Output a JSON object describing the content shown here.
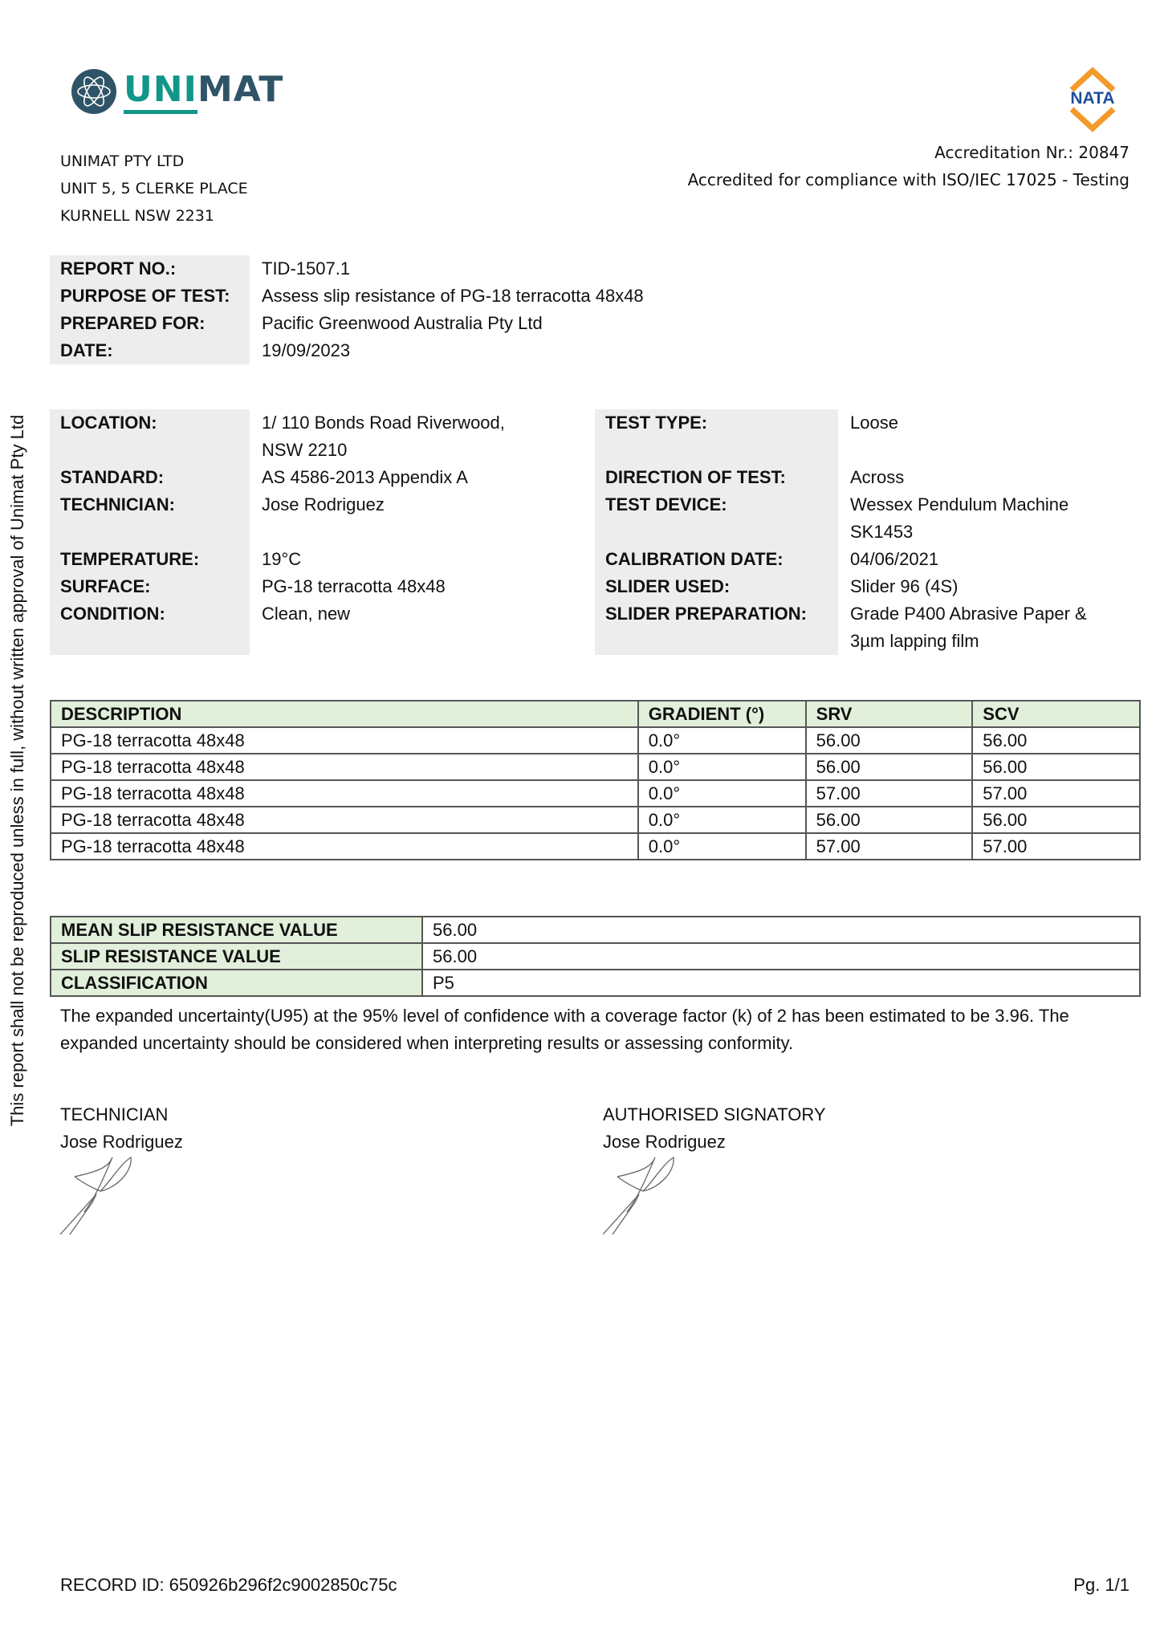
{
  "header": {
    "logo_text_a": "UNI",
    "logo_text_b": "MAT",
    "company_lines": [
      "UNIMAT PTY LTD",
      "UNIT 5, 5 CLERKE PLACE",
      "KURNELL NSW 2231"
    ],
    "nata_logo_text": "NATA",
    "accreditation_nr": "Accreditation Nr.: 20847",
    "accreditation_text": "Accredited for compliance with ISO/IEC 17025 - Testing",
    "colors": {
      "brand_teal": "#12968a",
      "brand_navy": "#2f5468",
      "nata_orange": "#f39a2b",
      "nata_blue": "#1d4f9c"
    }
  },
  "side_notice": "This report shall not be reproduced unless in full, without written approval of Unimat Pty Ltd",
  "report_info": [
    {
      "label": "REPORT NO.:",
      "value": "TID-1507.1"
    },
    {
      "label": "PURPOSE OF TEST:",
      "value": "Assess slip resistance of PG-18 terracotta 48x48"
    },
    {
      "label": "PREPARED FOR:",
      "value": "Pacific Greenwood Australia Pty Ltd"
    },
    {
      "label": "DATE:",
      "value": "19/09/2023"
    }
  ],
  "test_details_left": [
    {
      "label": "LOCATION:",
      "value": "1/ 110 Bonds Road Riverwood,",
      "value2": "NSW 2210"
    },
    {
      "label": "STANDARD:",
      "value": "AS 4586-2013 Appendix A"
    },
    {
      "label": "TECHNICIAN:",
      "value": "Jose Rodriguez"
    },
    {
      "label": "TEMPERATURE:",
      "value": "19°C"
    },
    {
      "label": "SURFACE:",
      "value": "PG-18 terracotta 48x48"
    },
    {
      "label": "CONDITION:",
      "value": "Clean, new"
    }
  ],
  "test_details_right": [
    {
      "label": "TEST TYPE:",
      "value": "Loose"
    },
    {
      "label": "DIRECTION OF TEST:",
      "value": "Across"
    },
    {
      "label": "TEST DEVICE:",
      "value": "Wessex Pendulum Machine",
      "value2": "SK1453"
    },
    {
      "label": "CALIBRATION DATE:",
      "value": "04/06/2021"
    },
    {
      "label": "SLIDER USED:",
      "value": "Slider 96 (4S)"
    },
    {
      "label": "SLIDER PREPARATION:",
      "value": "Grade P400 Abrasive Paper &",
      "value2": "3µm lapping film"
    }
  ],
  "results_table": {
    "headers": [
      "DESCRIPTION",
      "GRADIENT (°)",
      "SRV",
      "SCV"
    ],
    "rows": [
      [
        "PG-18 terracotta 48x48",
        "0.0°",
        "56.00",
        "56.00"
      ],
      [
        "PG-18 terracotta 48x48",
        "0.0°",
        "56.00",
        "56.00"
      ],
      [
        "PG-18 terracotta 48x48",
        "0.0°",
        "57.00",
        "57.00"
      ],
      [
        "PG-18 terracotta 48x48",
        "0.0°",
        "56.00",
        "56.00"
      ],
      [
        "PG-18 terracotta 48x48",
        "0.0°",
        "57.00",
        "57.00"
      ]
    ]
  },
  "summary": [
    {
      "label": "MEAN SLIP RESISTANCE VALUE",
      "value": "56.00"
    },
    {
      "label": "SLIP RESISTANCE VALUE",
      "value": "56.00"
    },
    {
      "label": "CLASSIFICATION",
      "value": "P5"
    }
  ],
  "uncertainty_note": "The expanded uncertainty(U95) at the 95% level of confidence with a coverage factor (k) of 2 has been estimated to be 3.96. The expanded uncertainty should be considered when interpreting results or assessing conformity.",
  "signatures": [
    {
      "role": "TECHNICIAN",
      "name": "Jose Rodriguez"
    },
    {
      "role": "AUTHORISED SIGNATORY",
      "name": "Jose Rodriguez"
    }
  ],
  "footer": {
    "record_id": "RECORD ID: 650926b296f2c9002850c75c",
    "page": "Pg. 1/1"
  }
}
